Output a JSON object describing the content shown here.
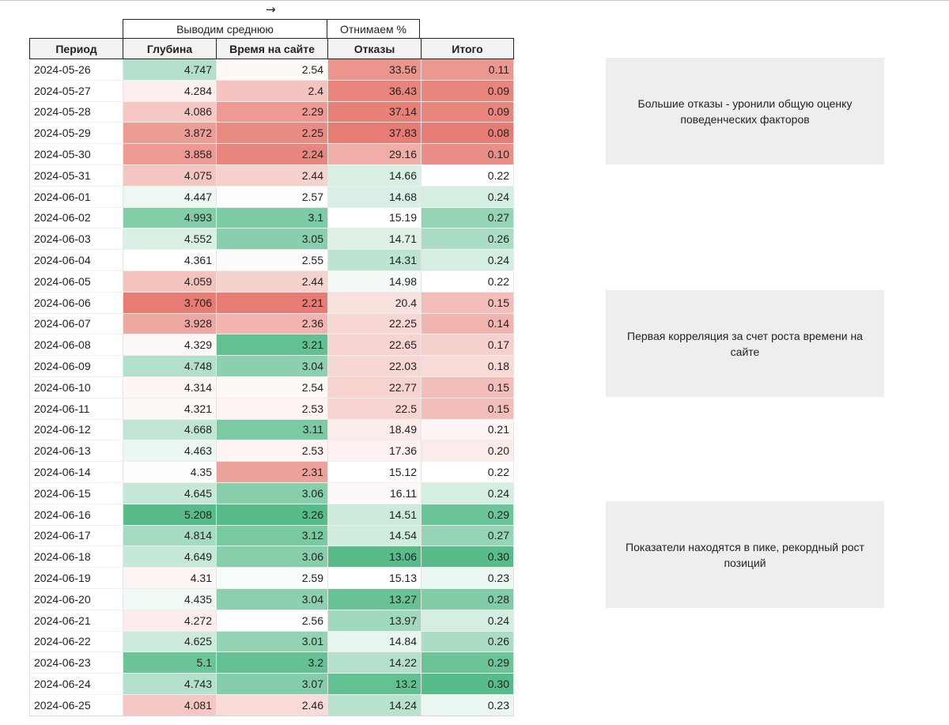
{
  "arrow_glyph": "→",
  "group_headers": {
    "avg": "Выводим среднюю",
    "subtract": "Отнимаем %"
  },
  "columns": [
    "Период",
    "Глубина",
    "Время на сайте",
    "Отказы",
    "Итого"
  ],
  "scale_colors": {
    "red": "#e67c73",
    "white": "#ffffff",
    "green": "#57bb8a"
  },
  "rows": [
    {
      "date": "2024-05-26",
      "depth": "4.747",
      "time": "2.54",
      "bounce": "33.56",
      "total": "0.11"
    },
    {
      "date": "2024-05-27",
      "depth": "4.284",
      "time": "2.4",
      "bounce": "36.43",
      "total": "0.09"
    },
    {
      "date": "2024-05-28",
      "depth": "4.086",
      "time": "2.29",
      "bounce": "37.14",
      "total": "0.09"
    },
    {
      "date": "2024-05-29",
      "depth": "3.872",
      "time": "2.25",
      "bounce": "37.83",
      "total": "0.08"
    },
    {
      "date": "2024-05-30",
      "depth": "3.858",
      "time": "2.24",
      "bounce": "29.16",
      "total": "0.10"
    },
    {
      "date": "2024-05-31",
      "depth": "4.075",
      "time": "2.44",
      "bounce": "14.66",
      "total": "0.22"
    },
    {
      "date": "2024-06-01",
      "depth": "4.447",
      "time": "2.57",
      "bounce": "14.68",
      "total": "0.24"
    },
    {
      "date": "2024-06-02",
      "depth": "4.993",
      "time": "3.1",
      "bounce": "15.19",
      "total": "0.27"
    },
    {
      "date": "2024-06-03",
      "depth": "4.552",
      "time": "3.05",
      "bounce": "14.71",
      "total": "0.26"
    },
    {
      "date": "2024-06-04",
      "depth": "4.361",
      "time": "2.55",
      "bounce": "14.31",
      "total": "0.24"
    },
    {
      "date": "2024-06-05",
      "depth": "4.059",
      "time": "2.44",
      "bounce": "14.98",
      "total": "0.22"
    },
    {
      "date": "2024-06-06",
      "depth": "3.706",
      "time": "2.21",
      "bounce": "20.4",
      "total": "0.15"
    },
    {
      "date": "2024-06-07",
      "depth": "3.928",
      "time": "2.36",
      "bounce": "22.25",
      "total": "0.14"
    },
    {
      "date": "2024-06-08",
      "depth": "4.329",
      "time": "3.21",
      "bounce": "22.65",
      "total": "0.17"
    },
    {
      "date": "2024-06-09",
      "depth": "4.748",
      "time": "3.04",
      "bounce": "22.03",
      "total": "0.18"
    },
    {
      "date": "2024-06-10",
      "depth": "4.314",
      "time": "2.54",
      "bounce": "22.77",
      "total": "0.15"
    },
    {
      "date": "2024-06-11",
      "depth": "4.321",
      "time": "2.53",
      "bounce": "22.5",
      "total": "0.15"
    },
    {
      "date": "2024-06-12",
      "depth": "4.668",
      "time": "3.11",
      "bounce": "18.49",
      "total": "0.21"
    },
    {
      "date": "2024-06-13",
      "depth": "4.463",
      "time": "2.53",
      "bounce": "17.36",
      "total": "0.20"
    },
    {
      "date": "2024-06-14",
      "depth": "4.35",
      "time": "2.31",
      "bounce": "15.12",
      "total": "0.22"
    },
    {
      "date": "2024-06-15",
      "depth": "4.645",
      "time": "3.06",
      "bounce": "16.11",
      "total": "0.24"
    },
    {
      "date": "2024-06-16",
      "depth": "5.208",
      "time": "3.26",
      "bounce": "14.51",
      "total": "0.29"
    },
    {
      "date": "2024-06-17",
      "depth": "4.814",
      "time": "3.12",
      "bounce": "14.54",
      "total": "0.27"
    },
    {
      "date": "2024-06-18",
      "depth": "4.649",
      "time": "3.06",
      "bounce": "13.06",
      "total": "0.30"
    },
    {
      "date": "2024-06-19",
      "depth": "4.31",
      "time": "2.59",
      "bounce": "15.13",
      "total": "0.23"
    },
    {
      "date": "2024-06-20",
      "depth": "4.435",
      "time": "3.04",
      "bounce": "13.27",
      "total": "0.28"
    },
    {
      "date": "2024-06-21",
      "depth": "4.272",
      "time": "2.56",
      "bounce": "13.97",
      "total": "0.24"
    },
    {
      "date": "2024-06-22",
      "depth": "4.625",
      "time": "3.01",
      "bounce": "14.84",
      "total": "0.26"
    },
    {
      "date": "2024-06-23",
      "depth": "5.1",
      "time": "3.2",
      "bounce": "14.22",
      "total": "0.29"
    },
    {
      "date": "2024-06-24",
      "depth": "4.743",
      "time": "3.07",
      "bounce": "13.2",
      "total": "0.30"
    },
    {
      "date": "2024-06-25",
      "depth": "4.081",
      "time": "2.46",
      "bounce": "14.24",
      "total": "0.23"
    }
  ],
  "notes": [
    "Большие отказы - уронили общую оценку поведенческих факторов",
    "Первая корреляция за счет роста времени на сайте",
    "Показатели находятся в пике, рекордный рост позиций"
  ]
}
